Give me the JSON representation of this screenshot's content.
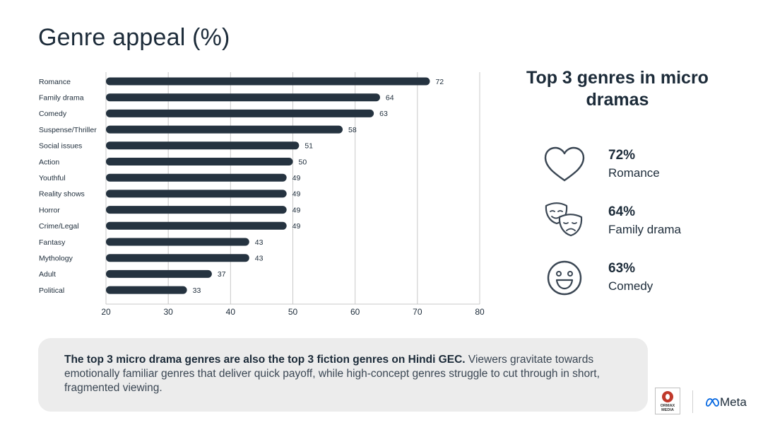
{
  "page": {
    "title": "Genre appeal (%)",
    "right_title": "Top 3 genres in micro dramas",
    "footer_bold": "The top 3 micro drama genres are also the top 3 fiction genres on Hindi GEC.",
    "footer_text": " Viewers gravitate towards emotionally familiar genres that deliver quick payoff, while high-concept genres struggle to cut through in short, fragmented viewing.",
    "ormax_logo_text": "ORMAX MEDIA",
    "meta_logo_text": "Meta"
  },
  "top_genres": [
    {
      "pct": "72%",
      "name": "Romance",
      "icon": "heart-icon"
    },
    {
      "pct": "64%",
      "name": "Family drama",
      "icon": "theatre-masks-icon"
    },
    {
      "pct": "63%",
      "name": "Comedy",
      "icon": "smiley-face-icon"
    }
  ],
  "colors": {
    "bar": "#253340",
    "text": "#1c2b39",
    "grid": "#c8c8c8",
    "footer_bg": "#ececec"
  },
  "chart_data": {
    "type": "bar",
    "orientation": "horizontal",
    "title": "Genre appeal (%)",
    "xlabel": "",
    "ylabel": "",
    "xlim": [
      20,
      80
    ],
    "ticks": [
      20,
      30,
      40,
      50,
      60,
      70,
      80
    ],
    "grid": true,
    "categories": [
      "Romance",
      "Family drama",
      "Comedy",
      "Suspense/Thriller",
      "Social issues",
      "Action",
      "Youthful",
      "Reality shows",
      "Horror",
      "Crime/Legal",
      "Fantasy",
      "Mythology",
      "Adult",
      "Political"
    ],
    "values": [
      72,
      64,
      63,
      58,
      51,
      50,
      49,
      49,
      49,
      49,
      43,
      43,
      37,
      33
    ]
  }
}
